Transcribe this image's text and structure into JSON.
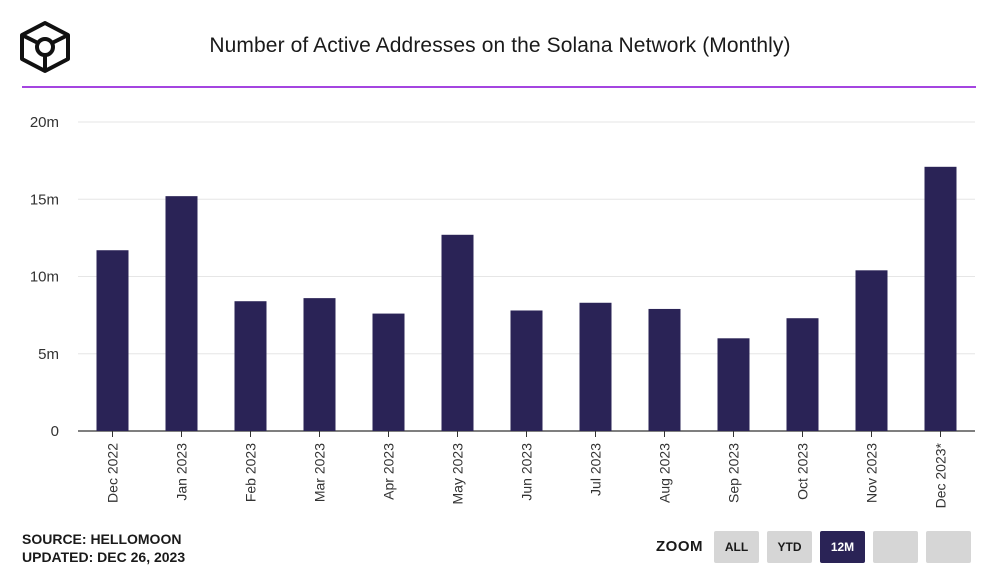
{
  "header": {
    "title": "Number of Active Addresses on the Solana Network (Monthly)",
    "logo_icon": "cube-logo-icon"
  },
  "footer": {
    "source": "SOURCE: HELLOMOON",
    "updated": "UPDATED: DEC 26, 2023"
  },
  "zoom": {
    "label": "ZOOM",
    "buttons": [
      {
        "label": "ALL",
        "active": false
      },
      {
        "label": "YTD",
        "active": false
      },
      {
        "label": "12M",
        "active": true
      },
      {
        "label": "",
        "active": false
      },
      {
        "label": "",
        "active": false
      }
    ]
  },
  "colors": {
    "bar": "#2a2356",
    "accent_rule": "#a445e0",
    "grid": "#e6e6e6"
  },
  "chart_data": {
    "type": "bar",
    "title": "Number of Active Addresses on the Solana Network (Monthly)",
    "xlabel": "",
    "ylabel": "",
    "categories": [
      "Dec 2022",
      "Jan 2023",
      "Feb 2023",
      "Mar 2023",
      "Apr 2023",
      "May 2023",
      "Jun 2023",
      "Jul 2023",
      "Aug 2023",
      "Sep 2023",
      "Oct 2023",
      "Nov 2023",
      "Dec 2023*"
    ],
    "values": [
      11.7,
      15.2,
      8.4,
      8.6,
      7.6,
      12.7,
      7.8,
      8.3,
      7.9,
      6.0,
      7.3,
      10.4,
      17.1
    ],
    "value_unit": "m",
    "ylim": [
      0,
      20
    ],
    "yticks": [
      {
        "value": 0,
        "label": "0"
      },
      {
        "value": 5,
        "label": "5m"
      },
      {
        "value": 10,
        "label": "10m"
      },
      {
        "value": 15,
        "label": "15m"
      },
      {
        "value": 20,
        "label": "20m"
      }
    ],
    "grid": true,
    "legend": "none"
  }
}
